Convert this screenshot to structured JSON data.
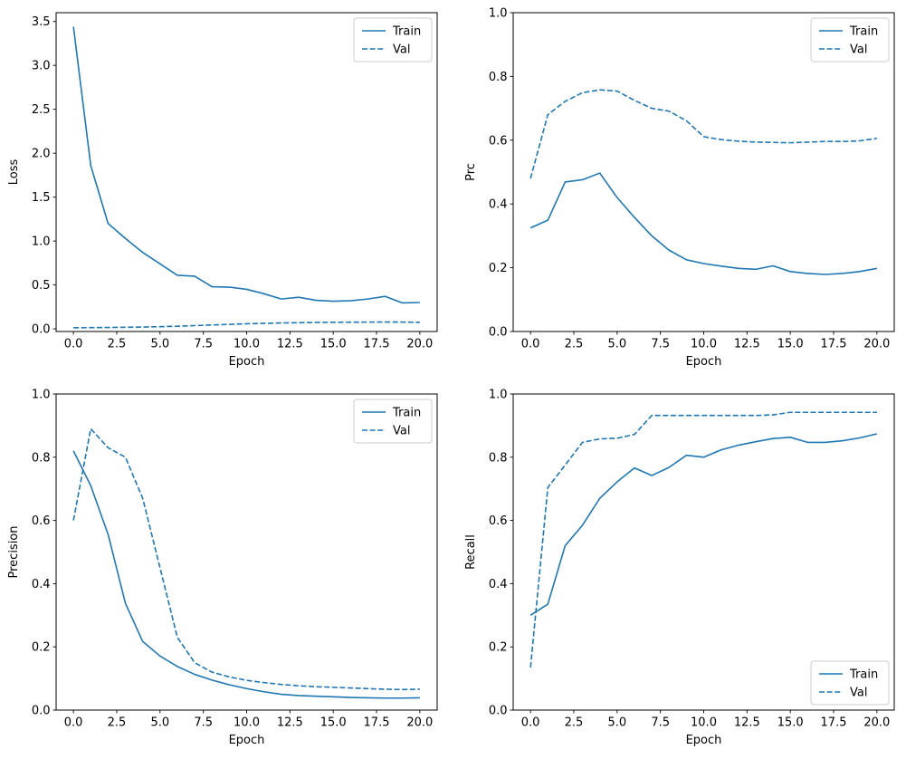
{
  "figure": {
    "background": "#ffffff",
    "line_color": "#1f77b4",
    "axis_color": "#000000",
    "legend_border_color": "#cccccc",
    "legend_background": "#ffffff"
  },
  "chart_data": [
    {
      "type": "line",
      "name": "loss",
      "title": "",
      "xlabel": "Epoch",
      "ylabel": "Loss",
      "xlim": [
        -1,
        21
      ],
      "ylim": [
        -0.03,
        3.6
      ],
      "grid": false,
      "xtick_values": [
        0,
        2.5,
        5,
        7.5,
        10,
        12.5,
        15,
        17.5,
        20
      ],
      "xtick_labels": [
        "0.0",
        "2.5",
        "5.0",
        "7.5",
        "10.0",
        "12.5",
        "15.0",
        "17.5",
        "20.0"
      ],
      "ytick_values": [
        0,
        0.5,
        1.0,
        1.5,
        2.0,
        2.5,
        3.0,
        3.5
      ],
      "ytick_labels": [
        "0.0",
        "0.5",
        "1.0",
        "1.5",
        "2.0",
        "2.5",
        "3.0",
        "3.5"
      ],
      "legend_position": "upper right",
      "x": [
        0,
        1,
        2,
        3,
        4,
        5,
        6,
        7,
        8,
        9,
        10,
        11,
        12,
        13,
        14,
        15,
        16,
        17,
        18,
        19,
        20
      ],
      "series": [
        {
          "name": "Train",
          "line_style": "solid",
          "values": [
            3.44,
            1.86,
            1.2,
            1.03,
            0.87,
            0.74,
            0.61,
            0.6,
            0.48,
            0.475,
            0.45,
            0.4,
            0.34,
            0.36,
            0.325,
            0.315,
            0.32,
            0.34,
            0.37,
            0.295,
            0.3
          ]
        },
        {
          "name": "Val",
          "line_style": "dashed",
          "values": [
            0.013,
            0.014,
            0.016,
            0.018,
            0.021,
            0.025,
            0.03,
            0.037,
            0.044,
            0.051,
            0.058,
            0.063,
            0.067,
            0.07,
            0.073,
            0.075,
            0.076,
            0.077,
            0.078,
            0.077,
            0.075
          ]
        }
      ]
    },
    {
      "type": "line",
      "name": "prc",
      "title": "",
      "xlabel": "Epoch",
      "ylabel": "Prc",
      "xlim": [
        -1,
        21
      ],
      "ylim": [
        0,
        1
      ],
      "grid": false,
      "xtick_values": [
        0,
        2.5,
        5,
        7.5,
        10,
        12.5,
        15,
        17.5,
        20
      ],
      "xtick_labels": [
        "0.0",
        "2.5",
        "5.0",
        "7.5",
        "10.0",
        "12.5",
        "15.0",
        "17.5",
        "20.0"
      ],
      "ytick_values": [
        0,
        0.2,
        0.4,
        0.6,
        0.8,
        1.0
      ],
      "ytick_labels": [
        "0.0",
        "0.2",
        "0.4",
        "0.6",
        "0.8",
        "1.0"
      ],
      "legend_position": "upper right",
      "x": [
        0,
        1,
        2,
        3,
        4,
        5,
        6,
        7,
        8,
        9,
        10,
        11,
        12,
        13,
        14,
        15,
        16,
        17,
        18,
        19,
        20
      ],
      "series": [
        {
          "name": "Train",
          "line_style": "solid",
          "values": [
            0.325,
            0.349,
            0.469,
            0.476,
            0.497,
            0.42,
            0.358,
            0.3,
            0.255,
            0.225,
            0.213,
            0.205,
            0.198,
            0.195,
            0.206,
            0.188,
            0.182,
            0.179,
            0.182,
            0.188,
            0.198
          ]
        },
        {
          "name": "Val",
          "line_style": "dashed",
          "values": [
            0.48,
            0.68,
            0.722,
            0.749,
            0.758,
            0.754,
            0.725,
            0.7,
            0.691,
            0.661,
            0.611,
            0.602,
            0.597,
            0.594,
            0.593,
            0.592,
            0.594,
            0.596,
            0.596,
            0.598,
            0.606
          ]
        }
      ]
    },
    {
      "type": "line",
      "name": "precision",
      "title": "",
      "xlabel": "Epoch",
      "ylabel": "Precision",
      "xlim": [
        -1,
        21
      ],
      "ylim": [
        0,
        1
      ],
      "grid": false,
      "xtick_values": [
        0,
        2.5,
        5,
        7.5,
        10,
        12.5,
        15,
        17.5,
        20
      ],
      "xtick_labels": [
        "0.0",
        "2.5",
        "5.0",
        "7.5",
        "10.0",
        "12.5",
        "15.0",
        "17.5",
        "20.0"
      ],
      "ytick_values": [
        0,
        0.2,
        0.4,
        0.6,
        0.8,
        1.0
      ],
      "ytick_labels": [
        "0.0",
        "0.2",
        "0.4",
        "0.6",
        "0.8",
        "1.0"
      ],
      "legend_position": "upper right",
      "x": [
        0,
        1,
        2,
        3,
        4,
        5,
        6,
        7,
        8,
        9,
        10,
        11,
        12,
        13,
        14,
        15,
        16,
        17,
        18,
        19,
        20
      ],
      "series": [
        {
          "name": "Train",
          "line_style": "solid",
          "values": [
            0.82,
            0.71,
            0.556,
            0.338,
            0.217,
            0.171,
            0.138,
            0.113,
            0.095,
            0.08,
            0.068,
            0.058,
            0.05,
            0.046,
            0.044,
            0.042,
            0.04,
            0.039,
            0.038,
            0.038,
            0.039
          ]
        },
        {
          "name": "Val",
          "line_style": "dashed",
          "values": [
            0.6,
            0.89,
            0.83,
            0.8,
            0.67,
            0.45,
            0.23,
            0.15,
            0.12,
            0.105,
            0.094,
            0.087,
            0.081,
            0.077,
            0.074,
            0.072,
            0.07,
            0.068,
            0.066,
            0.065,
            0.066
          ]
        }
      ]
    },
    {
      "type": "line",
      "name": "recall",
      "title": "",
      "xlabel": "Epoch",
      "ylabel": "Recall",
      "xlim": [
        -1,
        21
      ],
      "ylim": [
        0,
        1
      ],
      "grid": false,
      "xtick_values": [
        0,
        2.5,
        5,
        7.5,
        10,
        12.5,
        15,
        17.5,
        20
      ],
      "xtick_labels": [
        "0.0",
        "2.5",
        "5.0",
        "7.5",
        "10.0",
        "12.5",
        "15.0",
        "17.5",
        "20.0"
      ],
      "ytick_values": [
        0,
        0.2,
        0.4,
        0.6,
        0.8,
        1.0
      ],
      "ytick_labels": [
        "0.0",
        "0.2",
        "0.4",
        "0.6",
        "0.8",
        "1.0"
      ],
      "legend_position": "lower right",
      "x": [
        0,
        1,
        2,
        3,
        4,
        5,
        6,
        7,
        8,
        9,
        10,
        11,
        12,
        13,
        14,
        15,
        16,
        17,
        18,
        19,
        20
      ],
      "series": [
        {
          "name": "Train",
          "line_style": "solid",
          "values": [
            0.3,
            0.335,
            0.52,
            0.585,
            0.67,
            0.722,
            0.766,
            0.742,
            0.768,
            0.806,
            0.8,
            0.823,
            0.838,
            0.849,
            0.859,
            0.863,
            0.847,
            0.847,
            0.852,
            0.861,
            0.874
          ]
        },
        {
          "name": "Val",
          "line_style": "dashed",
          "values": [
            0.135,
            0.704,
            0.775,
            0.847,
            0.858,
            0.86,
            0.872,
            0.932,
            0.932,
            0.932,
            0.932,
            0.932,
            0.932,
            0.932,
            0.934,
            0.942,
            0.942,
            0.942,
            0.942,
            0.942,
            0.942
          ]
        }
      ]
    }
  ]
}
